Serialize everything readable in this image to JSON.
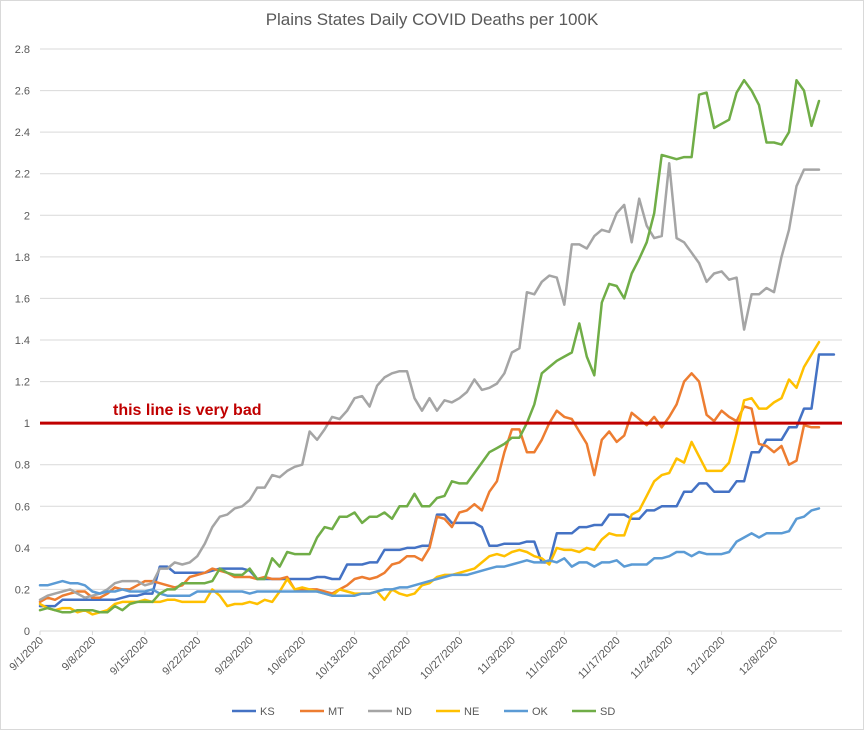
{
  "chart_data": {
    "type": "line",
    "title": "Plains States Daily COVID Deaths per 100K",
    "xlabel": "",
    "ylabel": "",
    "ylim": [
      0,
      2.8
    ],
    "yticks": [
      "0",
      "0.2",
      "0.4",
      "0.6",
      "0.8",
      "1",
      "1.2",
      "1.4",
      "1.6",
      "1.8",
      "2",
      "2.2",
      "2.4",
      "2.6",
      "2.8"
    ],
    "x_start": "9/1/2020",
    "x_end": "12/13/2020",
    "xticks": [
      "9/1/2020",
      "9/8/2020",
      "9/15/2020",
      "9/22/2020",
      "9/29/2020",
      "10/6/2020",
      "10/13/2020",
      "10/20/2020",
      "10/27/2020",
      "11/3/2020",
      "11/10/2020",
      "11/17/2020",
      "11/24/2020",
      "12/1/2020",
      "12/8/2020"
    ],
    "grid": "horizontal",
    "legend_position": "bottom",
    "reference_line": {
      "y": 1,
      "label": "this line is very bad",
      "color": "#c00000"
    },
    "series": [
      {
        "name": "KS",
        "color": "#4472c4",
        "values": [
          0.12,
          0.12,
          0.12,
          0.15,
          0.15,
          0.15,
          0.15,
          0.15,
          0.15,
          0.15,
          0.15,
          0.16,
          0.17,
          0.17,
          0.18,
          0.18,
          0.31,
          0.31,
          0.28,
          0.28,
          0.28,
          0.28,
          0.28,
          0.29,
          0.3,
          0.3,
          0.3,
          0.3,
          0.29,
          0.25,
          0.25,
          0.25,
          0.25,
          0.25,
          0.25,
          0.25,
          0.25,
          0.26,
          0.26,
          0.25,
          0.25,
          0.32,
          0.32,
          0.32,
          0.33,
          0.33,
          0.39,
          0.39,
          0.39,
          0.4,
          0.4,
          0.41,
          0.41,
          0.56,
          0.56,
          0.52,
          0.52,
          0.52,
          0.52,
          0.5,
          0.41,
          0.41,
          0.42,
          0.42,
          0.42,
          0.43,
          0.43,
          0.33,
          0.33,
          0.47,
          0.47,
          0.47,
          0.5,
          0.5,
          0.51,
          0.51,
          0.56,
          0.56,
          0.56,
          0.54,
          0.54,
          0.58,
          0.58,
          0.6,
          0.6,
          0.6,
          0.67,
          0.67,
          0.71,
          0.71,
          0.67,
          0.67,
          0.67,
          0.72,
          0.72,
          0.86,
          0.86,
          0.92,
          0.92,
          0.92,
          0.98,
          0.98,
          1.07,
          1.07,
          1.33,
          1.33,
          1.33
        ]
      },
      {
        "name": "MT",
        "color": "#ed7d31",
        "values": [
          0.14,
          0.16,
          0.15,
          0.17,
          0.18,
          0.19,
          0.19,
          0.16,
          0.16,
          0.18,
          0.21,
          0.2,
          0.2,
          0.22,
          0.24,
          0.24,
          0.23,
          0.22,
          0.21,
          0.22,
          0.26,
          0.27,
          0.28,
          0.3,
          0.29,
          0.28,
          0.26,
          0.26,
          0.26,
          0.25,
          0.26,
          0.25,
          0.25,
          0.26,
          0.2,
          0.2,
          0.2,
          0.2,
          0.19,
          0.18,
          0.2,
          0.22,
          0.25,
          0.26,
          0.25,
          0.26,
          0.28,
          0.32,
          0.33,
          0.36,
          0.36,
          0.34,
          0.4,
          0.55,
          0.54,
          0.5,
          0.57,
          0.58,
          0.61,
          0.58,
          0.67,
          0.72,
          0.86,
          0.97,
          0.97,
          0.86,
          0.86,
          0.92,
          1.0,
          1.06,
          1.03,
          1.02,
          0.96,
          0.9,
          0.75,
          0.92,
          0.96,
          0.91,
          0.94,
          1.05,
          1.02,
          0.99,
          1.03,
          0.98,
          1.03,
          1.09,
          1.2,
          1.24,
          1.2,
          1.04,
          1.01,
          1.06,
          1.03,
          1.01,
          1.08,
          1.07,
          0.9,
          0.89,
          0.86,
          0.89,
          0.8,
          0.82,
          0.99,
          0.98,
          0.98
        ]
      },
      {
        "name": "ND",
        "color": "#a5a5a5",
        "values": [
          0.15,
          0.17,
          0.18,
          0.19,
          0.2,
          0.18,
          0.16,
          0.17,
          0.18,
          0.2,
          0.23,
          0.24,
          0.24,
          0.24,
          0.22,
          0.23,
          0.3,
          0.3,
          0.33,
          0.32,
          0.33,
          0.36,
          0.42,
          0.5,
          0.55,
          0.56,
          0.59,
          0.6,
          0.63,
          0.69,
          0.69,
          0.75,
          0.74,
          0.77,
          0.79,
          0.8,
          0.96,
          0.92,
          0.97,
          1.03,
          1.02,
          1.06,
          1.12,
          1.13,
          1.08,
          1.18,
          1.22,
          1.24,
          1.25,
          1.25,
          1.12,
          1.06,
          1.12,
          1.06,
          1.11,
          1.1,
          1.12,
          1.15,
          1.21,
          1.16,
          1.17,
          1.19,
          1.24,
          1.34,
          1.36,
          1.63,
          1.62,
          1.68,
          1.71,
          1.7,
          1.57,
          1.86,
          1.86,
          1.84,
          1.9,
          1.93,
          1.92,
          2.01,
          2.05,
          1.87,
          2.08,
          1.95,
          1.89,
          1.9,
          2.25,
          1.89,
          1.87,
          1.82,
          1.77,
          1.68,
          1.72,
          1.73,
          1.69,
          1.7,
          1.45,
          1.62,
          1.62,
          1.65,
          1.63,
          1.8,
          1.93,
          2.14,
          2.22,
          2.22,
          2.22
        ]
      },
      {
        "name": "NE",
        "color": "#ffc000",
        "values": [
          0.13,
          0.11,
          0.1,
          0.11,
          0.11,
          0.09,
          0.1,
          0.08,
          0.09,
          0.1,
          0.13,
          0.14,
          0.14,
          0.14,
          0.15,
          0.14,
          0.14,
          0.15,
          0.15,
          0.14,
          0.14,
          0.14,
          0.14,
          0.2,
          0.17,
          0.12,
          0.13,
          0.13,
          0.14,
          0.13,
          0.15,
          0.14,
          0.19,
          0.25,
          0.2,
          0.21,
          0.2,
          0.19,
          0.18,
          0.17,
          0.2,
          0.19,
          0.18,
          0.18,
          0.18,
          0.19,
          0.15,
          0.2,
          0.18,
          0.17,
          0.18,
          0.22,
          0.23,
          0.26,
          0.27,
          0.27,
          0.28,
          0.29,
          0.3,
          0.33,
          0.36,
          0.37,
          0.36,
          0.38,
          0.39,
          0.38,
          0.36,
          0.35,
          0.32,
          0.4,
          0.39,
          0.39,
          0.38,
          0.4,
          0.39,
          0.44,
          0.47,
          0.46,
          0.46,
          0.56,
          0.58,
          0.65,
          0.72,
          0.75,
          0.76,
          0.83,
          0.81,
          0.91,
          0.84,
          0.77,
          0.77,
          0.77,
          0.81,
          0.95,
          1.11,
          1.12,
          1.07,
          1.07,
          1.1,
          1.12,
          1.21,
          1.17,
          1.27,
          1.33,
          1.39
        ]
      },
      {
        "name": "OK",
        "color": "#5b9bd5",
        "values": [
          0.22,
          0.22,
          0.23,
          0.24,
          0.23,
          0.23,
          0.22,
          0.19,
          0.18,
          0.19,
          0.19,
          0.2,
          0.19,
          0.19,
          0.19,
          0.2,
          0.18,
          0.17,
          0.17,
          0.17,
          0.17,
          0.19,
          0.19,
          0.19,
          0.19,
          0.19,
          0.19,
          0.19,
          0.18,
          0.19,
          0.19,
          0.19,
          0.19,
          0.19,
          0.19,
          0.19,
          0.19,
          0.19,
          0.18,
          0.17,
          0.17,
          0.17,
          0.17,
          0.18,
          0.18,
          0.19,
          0.2,
          0.2,
          0.21,
          0.21,
          0.22,
          0.23,
          0.24,
          0.25,
          0.26,
          0.27,
          0.27,
          0.27,
          0.28,
          0.29,
          0.3,
          0.31,
          0.31,
          0.32,
          0.33,
          0.34,
          0.33,
          0.33,
          0.34,
          0.33,
          0.35,
          0.31,
          0.33,
          0.33,
          0.31,
          0.33,
          0.33,
          0.34,
          0.31,
          0.32,
          0.32,
          0.32,
          0.35,
          0.35,
          0.36,
          0.38,
          0.38,
          0.36,
          0.38,
          0.37,
          0.37,
          0.37,
          0.38,
          0.43,
          0.45,
          0.47,
          0.45,
          0.47,
          0.47,
          0.47,
          0.48,
          0.54,
          0.55,
          0.58,
          0.59
        ]
      },
      {
        "name": "SD",
        "color": "#70ad47",
        "values": [
          0.1,
          0.11,
          0.1,
          0.09,
          0.09,
          0.1,
          0.1,
          0.1,
          0.09,
          0.09,
          0.12,
          0.1,
          0.13,
          0.14,
          0.14,
          0.14,
          0.18,
          0.2,
          0.2,
          0.23,
          0.23,
          0.23,
          0.23,
          0.24,
          0.3,
          0.28,
          0.27,
          0.27,
          0.3,
          0.25,
          0.25,
          0.35,
          0.31,
          0.38,
          0.37,
          0.37,
          0.37,
          0.45,
          0.5,
          0.49,
          0.55,
          0.55,
          0.57,
          0.52,
          0.55,
          0.55,
          0.57,
          0.54,
          0.6,
          0.6,
          0.66,
          0.6,
          0.6,
          0.64,
          0.65,
          0.72,
          0.71,
          0.71,
          0.76,
          0.81,
          0.86,
          0.88,
          0.9,
          0.93,
          0.93,
          1.0,
          1.09,
          1.24,
          1.27,
          1.3,
          1.32,
          1.34,
          1.48,
          1.32,
          1.23,
          1.58,
          1.67,
          1.66,
          1.6,
          1.72,
          1.79,
          1.87,
          2.01,
          2.29,
          2.28,
          2.27,
          2.28,
          2.28,
          2.58,
          2.59,
          2.42,
          2.44,
          2.46,
          2.59,
          2.65,
          2.6,
          2.53,
          2.35,
          2.35,
          2.34,
          2.4,
          2.65,
          2.6,
          2.43,
          2.55
        ]
      }
    ]
  }
}
